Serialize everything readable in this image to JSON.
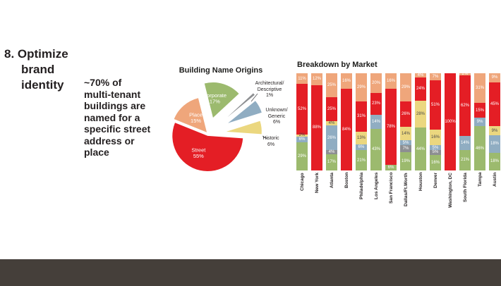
{
  "slide": {
    "heading_lines": [
      "8. Optimize",
      "brand",
      "identity"
    ],
    "body_lines": [
      "~70% of",
      "multi-tenant",
      "buildings are",
      "named for a",
      "specific street",
      "address or",
      "place"
    ]
  },
  "chart_data": [
    {
      "type": "pie",
      "title": "Building Name Origins",
      "slices": [
        {
          "label": "Corporate",
          "value": 17,
          "pct_label": "17%",
          "color": "#9cba6e",
          "label_pos": "inside"
        },
        {
          "label": "Architectural/Descriptive",
          "value": 1,
          "pct_label": "1%",
          "color": "#8d8f92",
          "label_pos": "callout"
        },
        {
          "label": "Unknown/Generic",
          "value": 6,
          "pct_label": "6%",
          "color": "#90adc2",
          "label_pos": "callout"
        },
        {
          "label": "Historic",
          "value": 6,
          "pct_label": "6%",
          "color": "#ebd77f",
          "label_pos": "callout"
        },
        {
          "label": "Street",
          "value": 55,
          "pct_label": "55%",
          "color": "#e41e25",
          "label_pos": "inside"
        },
        {
          "label": "Place",
          "value": 15,
          "pct_label": "15%",
          "color": "#efa67b",
          "label_pos": "inside"
        }
      ],
      "callouts": {
        "architectural": {
          "lines": [
            "Architectural/",
            "Descriptive",
            "1%"
          ]
        },
        "unknown": {
          "lines": [
            "Unknown/",
            "Generic",
            "6%"
          ]
        },
        "historic": {
          "lines": [
            "Historic",
            "6%"
          ]
        }
      }
    },
    {
      "type": "bar",
      "stacked": true,
      "title": "Breakdown by Market",
      "value_suffix": "%",
      "categories": [
        "Chicago",
        "New York",
        "Atlanta",
        "Boston",
        "Philadelphia",
        "Los Angeles",
        "San Francisco",
        "Dallas/Ft.Worth",
        "Houston",
        "Denver",
        "Washington, DC",
        "South Florida",
        "Tampa",
        "Austin"
      ],
      "series": [
        {
          "name": "Corporate",
          "color": "#9cba6e",
          "text_color": "#ffffff",
          "values": [
            29,
            0,
            17,
            0,
            21,
            43,
            6,
            19,
            44,
            16,
            0,
            21,
            46,
            18
          ]
        },
        {
          "name": "Architectural/Descriptive",
          "color": "#8d8f92",
          "text_color": "#ffffff",
          "values": [
            0,
            0,
            4,
            0,
            0,
            0,
            0,
            7,
            0,
            5,
            0,
            0,
            0,
            0
          ]
        },
        {
          "name": "Unknown/Generic",
          "color": "#90adc2",
          "text_color": "#ffffff",
          "values": [
            6,
            0,
            26,
            0,
            6,
            14,
            0,
            5,
            0,
            5,
            0,
            14,
            9,
            18
          ]
        },
        {
          "name": "Historic",
          "color": "#ebd77f",
          "text_color": "#4a4a4a",
          "values": [
            2,
            0,
            4,
            0,
            13,
            0,
            0,
            14,
            28,
            16,
            0,
            0,
            0,
            9
          ]
        },
        {
          "name": "Street",
          "color": "#e41e25",
          "text_color": "#ffffff",
          "values": [
            52,
            88,
            25,
            84,
            31,
            23,
            78,
            26,
            24,
            51,
            100,
            62,
            15,
            45
          ]
        },
        {
          "name": "Place",
          "color": "#efa67b",
          "text_color": "#ffffff",
          "values": [
            11,
            12,
            25,
            16,
            29,
            20,
            16,
            29,
            4,
            7,
            0,
            2,
            31,
            9
          ]
        }
      ]
    }
  ],
  "footer": {
    "color": "#453f3a"
  }
}
